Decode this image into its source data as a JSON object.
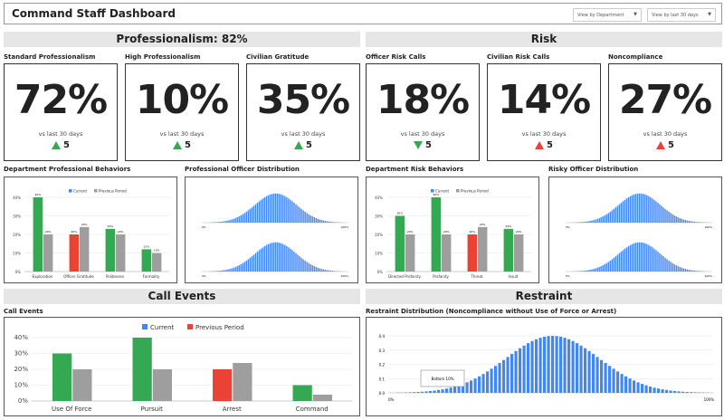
{
  "header": {
    "title": "Command Staff Dashboard",
    "department_select": "View by Department",
    "period_select": "View by last 30 days"
  },
  "sections": {
    "professionalism": "Professionalism: 82%",
    "risk": "Risk",
    "call_events": "Call Events",
    "restraint": "Restraint"
  },
  "kpis": [
    {
      "label": "Standard Professionalism",
      "value": "72%",
      "sub": "vs last 30 days",
      "delta": "5",
      "direction": "up",
      "color": "#34a853"
    },
    {
      "label": "High Professionalism",
      "value": "10%",
      "sub": "vs last 30 days",
      "delta": "5",
      "direction": "up",
      "color": "#34a853"
    },
    {
      "label": "Civilian Gratitude",
      "value": "35%",
      "sub": "vs last 30 days",
      "delta": "5",
      "direction": "up",
      "color": "#34a853"
    },
    {
      "label": "Officer Risk Calls",
      "value": "18%",
      "sub": "vs last 30 days",
      "delta": "5",
      "direction": "down",
      "color": "#34a853"
    },
    {
      "label": "Civilian Risk Calls",
      "value": "14%",
      "sub": "vs last 30 days",
      "delta": "5",
      "direction": "up",
      "color": "#ea4335"
    },
    {
      "label": "Noncompliance",
      "value": "27%",
      "sub": "vs last 30 days",
      "delta": "5",
      "direction": "up",
      "color": "#ea4335"
    }
  ],
  "chart_titles": {
    "dept_prof": "Department Professional Behaviors",
    "prof_dist": "Professional Officer Distribution",
    "dept_risk": "Department Risk Behaviors",
    "risky_dist": "Risky Officer Distribution",
    "call_events": "Call Events",
    "restraint": "Restraint Distribution (Noncompliance without Use of Force or Arrest)"
  },
  "chart_data": [
    {
      "id": "dept_prof",
      "type": "bar",
      "categories": [
        "Exploration",
        "Officer Gratitude",
        "Politeness",
        "Formality"
      ],
      "series": [
        {
          "name": "Current",
          "values": [
            40,
            20,
            23,
            12
          ],
          "colors": [
            "#34a853",
            "#ea4335",
            "#34a853",
            "#34a853"
          ]
        },
        {
          "name": "Previous Period",
          "values": [
            20,
            24,
            20,
            10
          ],
          "color": "#9e9e9e"
        }
      ],
      "ylim": [
        0,
        40
      ],
      "yticks": [
        "0%",
        "10%",
        "20%",
        "30%",
        "40%"
      ],
      "legend": "top",
      "grid": true,
      "data_labels": true
    },
    {
      "id": "dept_risk",
      "type": "bar",
      "categories": [
        "Directed Profanity",
        "Profanity",
        "Threat",
        "Insult"
      ],
      "series": [
        {
          "name": "Current",
          "values": [
            30,
            40,
            20,
            23
          ],
          "colors": [
            "#34a853",
            "#34a853",
            "#ea4335",
            "#34a853"
          ]
        },
        {
          "name": "Previous Period",
          "values": [
            20,
            20,
            24,
            20
          ],
          "color": "#9e9e9e"
        }
      ],
      "ylim": [
        0,
        40
      ],
      "yticks": [
        "0%",
        "10%",
        "20%",
        "30%",
        "40%"
      ],
      "legend": "top",
      "grid": true,
      "data_labels": true
    },
    {
      "id": "call_events",
      "type": "bar",
      "categories": [
        "Use Of Force",
        "Pursuit",
        "Arrest",
        "Command"
      ],
      "series": [
        {
          "name": "Current",
          "values": [
            30,
            40,
            20,
            10
          ],
          "colors": [
            "#34a853",
            "#34a853",
            "#ea4335",
            "#34a853"
          ]
        },
        {
          "name": "Previous Period",
          "values": [
            20,
            20,
            24,
            4
          ],
          "color": "#9e9e9e"
        }
      ],
      "legend_colors": [
        "#4285f4",
        "#ea4335"
      ],
      "ylim": [
        0,
        40
      ],
      "yticks": [
        "0%",
        "10%",
        "20%",
        "30%",
        "40%"
      ],
      "legend": "top",
      "grid": true
    },
    {
      "id": "restraint",
      "type": "bar",
      "distribution": "normal",
      "x_range": [
        "0%",
        "100%"
      ],
      "ylim": [
        0,
        0.4
      ],
      "yticks": [
        "0.0",
        "0.1",
        "0.2",
        "0.3",
        "0.4"
      ],
      "peak": 0.4,
      "peak_x": 50,
      "annotation": "Bottom 10%",
      "color": "#4285f4",
      "grid": true
    },
    {
      "id": "prof_dist",
      "type": "bar",
      "distribution": "normal",
      "x_range": [
        "0%",
        "100%"
      ],
      "color": "#4285f4",
      "panels": 2
    },
    {
      "id": "risky_dist",
      "type": "bar",
      "distribution": "normal",
      "x_range": [
        "0%",
        "100%"
      ],
      "color": "#4285f4",
      "panels": 2
    }
  ]
}
